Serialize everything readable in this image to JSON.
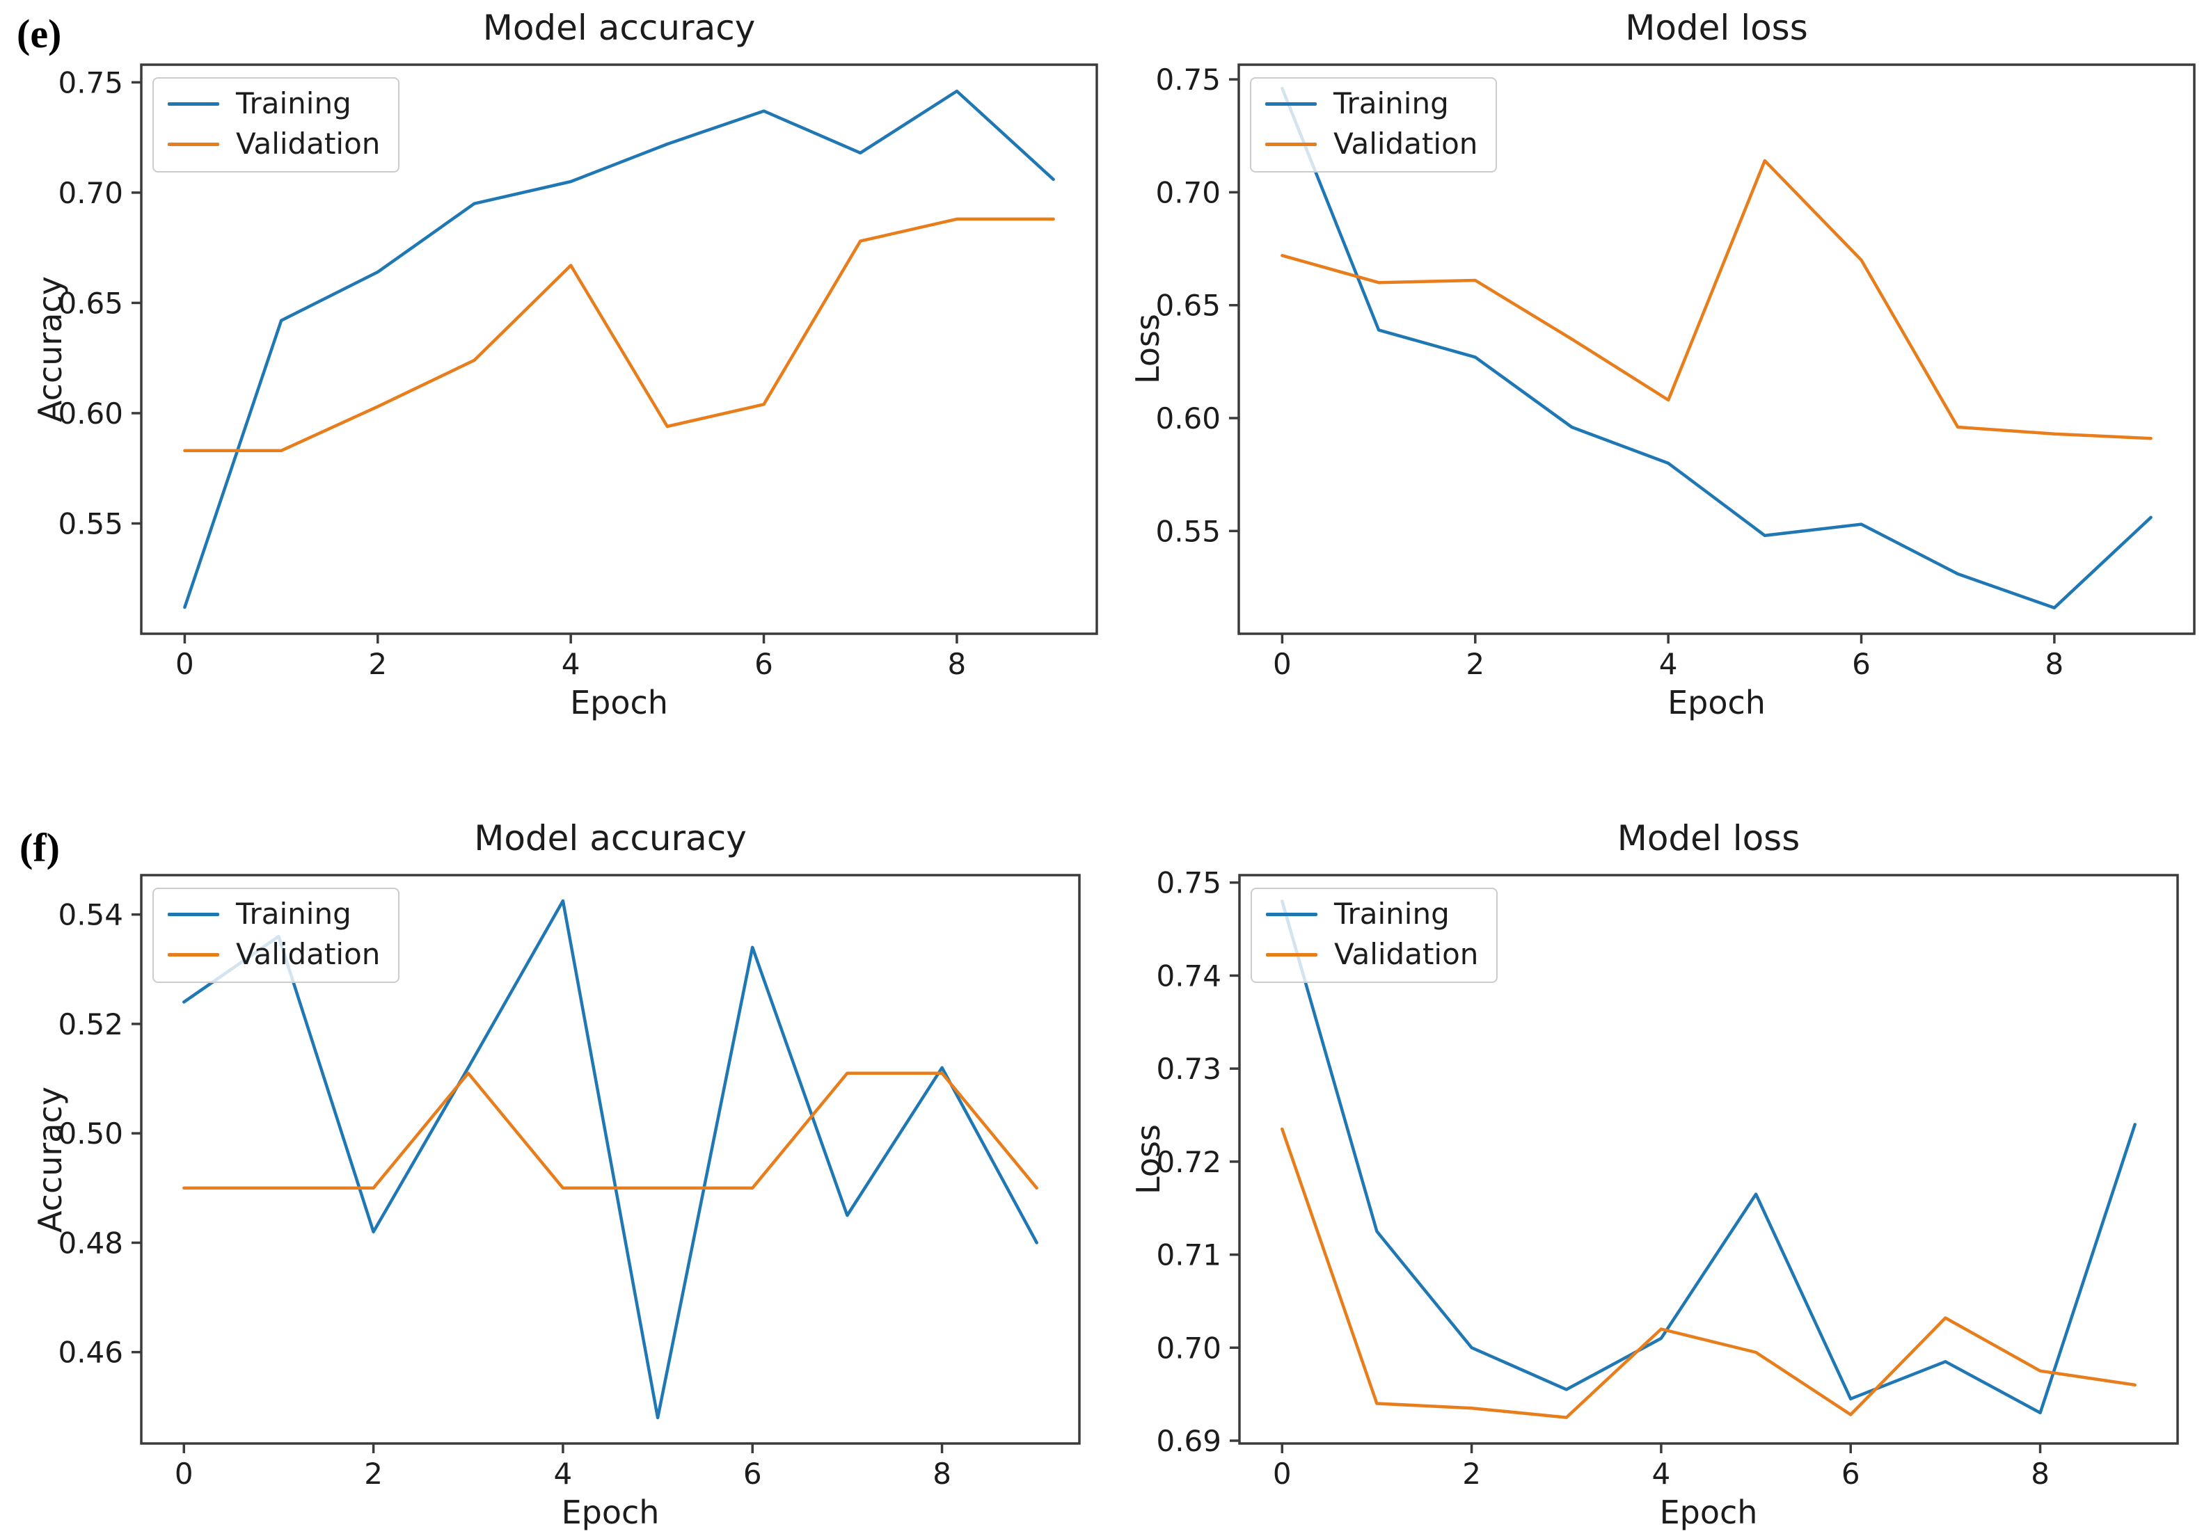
{
  "figure": {
    "panel_labels": [
      {
        "id": "e",
        "text": "(e)"
      },
      {
        "id": "f",
        "text": "(f)"
      }
    ]
  },
  "colors": {
    "training": "#1f77b4",
    "validation": "#e87d1c",
    "axis": "#3b3b3b",
    "text": "#1c1c1c",
    "legend_border": "#cccccc"
  },
  "chart_data": [
    {
      "id": "e-accuracy",
      "type": "line",
      "title": "Model accuracy",
      "xlabel": "Epoch",
      "ylabel": "Accuracy",
      "x": [
        0,
        1,
        2,
        3,
        4,
        5,
        6,
        7,
        8,
        9
      ],
      "series": [
        {
          "name": "Training",
          "values": [
            0.512,
            0.642,
            0.664,
            0.695,
            0.705,
            0.722,
            0.737,
            0.718,
            0.746,
            0.706
          ]
        },
        {
          "name": "Validation",
          "values": [
            0.583,
            0.583,
            0.603,
            0.624,
            0.667,
            0.594,
            0.604,
            0.678,
            0.688,
            0.688
          ]
        }
      ],
      "xlim": [
        -0.45,
        9.45
      ],
      "ylim": [
        0.5,
        0.758
      ],
      "xticks": [
        0,
        2,
        4,
        6,
        8
      ],
      "xtick_labels": [
        "0",
        "2",
        "4",
        "6",
        "8"
      ],
      "yticks": [
        0.55,
        0.6,
        0.65,
        0.7,
        0.75
      ],
      "ytick_labels": [
        "0.55",
        "0.60",
        "0.65",
        "0.70",
        "0.75"
      ],
      "legend_position": "upper left",
      "grid": false
    },
    {
      "id": "e-loss",
      "type": "line",
      "title": "Model loss",
      "xlabel": "Epoch",
      "ylabel": "Loss",
      "x": [
        0,
        1,
        2,
        3,
        4,
        5,
        6,
        7,
        8,
        9
      ],
      "series": [
        {
          "name": "Training",
          "values": [
            0.746,
            0.639,
            0.627,
            0.596,
            0.58,
            0.548,
            0.553,
            0.531,
            0.516,
            0.556
          ]
        },
        {
          "name": "Validation",
          "values": [
            0.672,
            0.66,
            0.661,
            0.635,
            0.608,
            0.714,
            0.67,
            0.596,
            0.593,
            0.591
          ]
        }
      ],
      "xlim": [
        -0.45,
        9.45
      ],
      "ylim": [
        0.5045,
        0.7565
      ],
      "xticks": [
        0,
        2,
        4,
        6,
        8
      ],
      "xtick_labels": [
        "0",
        "2",
        "4",
        "6",
        "8"
      ],
      "yticks": [
        0.55,
        0.6,
        0.65,
        0.7,
        0.75
      ],
      "ytick_labels": [
        "0.55",
        "0.60",
        "0.65",
        "0.70",
        "0.75"
      ],
      "legend_position": "upper left",
      "grid": false
    },
    {
      "id": "f-accuracy",
      "type": "line",
      "title": "Model accuracy",
      "xlabel": "Epoch",
      "ylabel": "Accuracy",
      "x": [
        0,
        1,
        2,
        3,
        4,
        5,
        6,
        7,
        8,
        9
      ],
      "series": [
        {
          "name": "Training",
          "values": [
            0.524,
            0.536,
            0.482,
            0.512,
            0.5425,
            0.448,
            0.534,
            0.485,
            0.512,
            0.48
          ]
        },
        {
          "name": "Validation",
          "values": [
            0.49,
            0.49,
            0.49,
            0.511,
            0.49,
            0.49,
            0.49,
            0.511,
            0.511,
            0.49
          ]
        }
      ],
      "xlim": [
        -0.45,
        9.45
      ],
      "ylim": [
        0.4433,
        0.5472
      ],
      "xticks": [
        0,
        2,
        4,
        6,
        8
      ],
      "xtick_labels": [
        "0",
        "2",
        "4",
        "6",
        "8"
      ],
      "yticks": [
        0.46,
        0.48,
        0.5,
        0.52,
        0.54
      ],
      "ytick_labels": [
        "0.46",
        "0.48",
        "0.50",
        "0.52",
        "0.54"
      ],
      "legend_position": "upper left",
      "grid": false
    },
    {
      "id": "f-loss",
      "type": "line",
      "title": "Model loss",
      "xlabel": "Epoch",
      "ylabel": "Loss",
      "x": [
        0,
        1,
        2,
        3,
        4,
        5,
        6,
        7,
        8,
        9
      ],
      "series": [
        {
          "name": "Training",
          "values": [
            0.748,
            0.7125,
            0.7,
            0.6955,
            0.701,
            0.7165,
            0.6945,
            0.6985,
            0.693,
            0.724
          ]
        },
        {
          "name": "Validation",
          "values": [
            0.7235,
            0.694,
            0.6935,
            0.6925,
            0.702,
            0.6995,
            0.6928,
            0.7032,
            0.6975,
            0.696
          ]
        }
      ],
      "xlim": [
        -0.45,
        9.45
      ],
      "ylim": [
        0.6897,
        0.7508
      ],
      "xticks": [
        0,
        2,
        4,
        6,
        8
      ],
      "xtick_labels": [
        "0",
        "2",
        "4",
        "6",
        "8"
      ],
      "yticks": [
        0.69,
        0.7,
        0.71,
        0.72,
        0.73,
        0.74,
        0.75
      ],
      "ytick_labels": [
        "0.69",
        "0.70",
        "0.71",
        "0.72",
        "0.73",
        "0.74",
        "0.75"
      ],
      "legend_position": "upper left",
      "grid": false
    }
  ]
}
